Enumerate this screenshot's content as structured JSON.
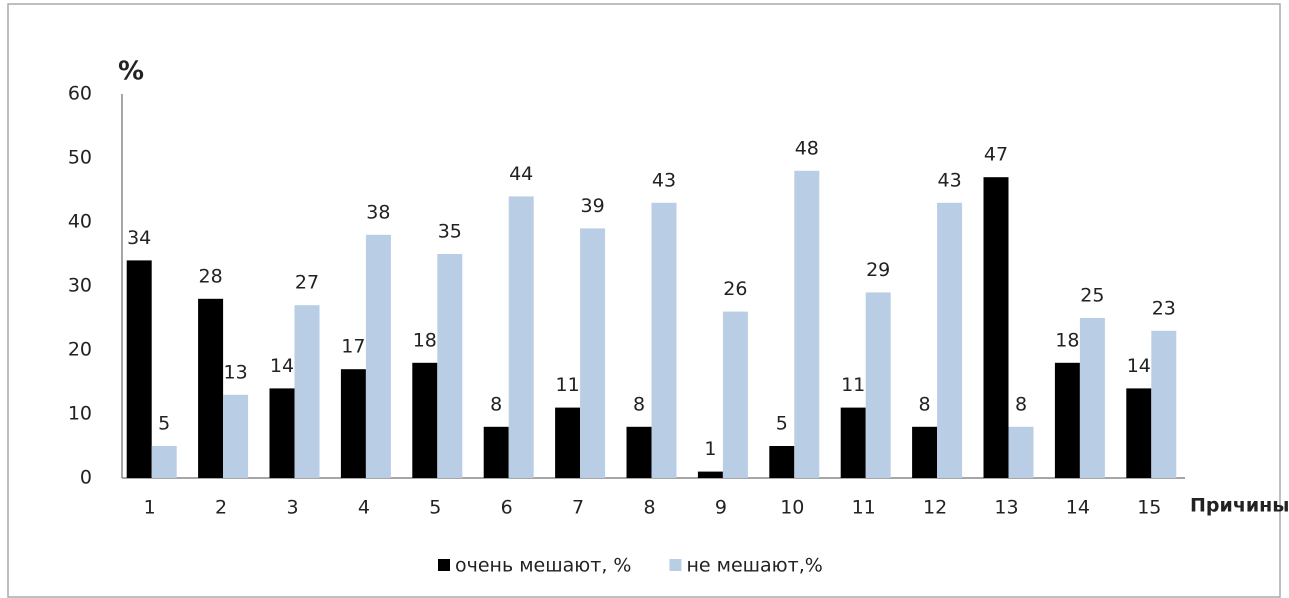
{
  "chart_data": {
    "type": "bar",
    "y_label": "%",
    "x_label": "Причины",
    "categories": [
      "1",
      "2",
      "3",
      "4",
      "5",
      "6",
      "7",
      "8",
      "9",
      "10",
      "11",
      "12",
      "13",
      "14",
      "15"
    ],
    "series": [
      {
        "name": "очень мешают, %",
        "color": "#000000",
        "values": [
          34,
          28,
          14,
          17,
          18,
          8,
          11,
          8,
          1,
          5,
          11,
          8,
          47,
          18,
          14
        ]
      },
      {
        "name": "не мешают,%",
        "color": "#b9cde5",
        "values": [
          5,
          13,
          27,
          38,
          35,
          44,
          39,
          43,
          26,
          48,
          29,
          43,
          8,
          25,
          23
        ]
      }
    ],
    "ylim": [
      0,
      60
    ],
    "yticks": [
      0,
      10,
      20,
      30,
      40,
      50,
      60
    ],
    "grid": false,
    "legend": "bottom"
  }
}
